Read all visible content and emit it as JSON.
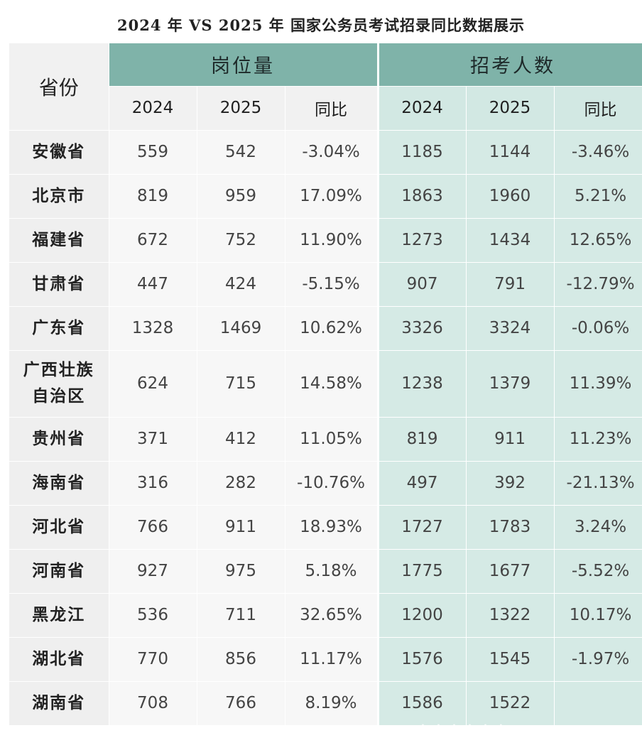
{
  "title": "2024 年 VS 2025 年 国家公务员考试招录同比数据展示",
  "header": {
    "province": "省份",
    "group_positions": "岗位量",
    "group_applicants": "招考人数",
    "col_2024": "2024",
    "col_2025": "2025",
    "col_yoy": "同比"
  },
  "rows": [
    {
      "province": "安徽省",
      "pos_2024": "559",
      "pos_2025": "542",
      "pos_yoy": "-3.04%",
      "app_2024": "1185",
      "app_2025": "1144",
      "app_yoy": "-3.46%"
    },
    {
      "province": "北京市",
      "pos_2024": "819",
      "pos_2025": "959",
      "pos_yoy": "17.09%",
      "app_2024": "1863",
      "app_2025": "1960",
      "app_yoy": "5.21%"
    },
    {
      "province": "福建省",
      "pos_2024": "672",
      "pos_2025": "752",
      "pos_yoy": "11.90%",
      "app_2024": "1273",
      "app_2025": "1434",
      "app_yoy": "12.65%"
    },
    {
      "province": "甘肃省",
      "pos_2024": "447",
      "pos_2025": "424",
      "pos_yoy": "-5.15%",
      "app_2024": "907",
      "app_2025": "791",
      "app_yoy": "-12.79%"
    },
    {
      "province": "广东省",
      "pos_2024": "1328",
      "pos_2025": "1469",
      "pos_yoy": "10.62%",
      "app_2024": "3326",
      "app_2025": "3324",
      "app_yoy": "-0.06%"
    },
    {
      "province_line1": "广西壮族",
      "province_line2": "自治区",
      "pos_2024": "624",
      "pos_2025": "715",
      "pos_yoy": "14.58%",
      "app_2024": "1238",
      "app_2025": "1379",
      "app_yoy": "11.39%"
    },
    {
      "province": "贵州省",
      "pos_2024": "371",
      "pos_2025": "412",
      "pos_yoy": "11.05%",
      "app_2024": "819",
      "app_2025": "911",
      "app_yoy": "11.23%"
    },
    {
      "province": "海南省",
      "pos_2024": "316",
      "pos_2025": "282",
      "pos_yoy": "-10.76%",
      "app_2024": "497",
      "app_2025": "392",
      "app_yoy": "-21.13%"
    },
    {
      "province": "河北省",
      "pos_2024": "766",
      "pos_2025": "911",
      "pos_yoy": "18.93%",
      "app_2024": "1727",
      "app_2025": "1783",
      "app_yoy": "3.24%"
    },
    {
      "province": "河南省",
      "pos_2024": "927",
      "pos_2025": "975",
      "pos_yoy": "5.18%",
      "app_2024": "1775",
      "app_2025": "1677",
      "app_yoy": "-5.52%"
    },
    {
      "province": "黑龙江",
      "pos_2024": "536",
      "pos_2025": "711",
      "pos_yoy": "32.65%",
      "app_2024": "1200",
      "app_2025": "1322",
      "app_yoy": "10.17%"
    },
    {
      "province": "湖北省",
      "pos_2024": "770",
      "pos_2025": "856",
      "pos_yoy": "11.17%",
      "app_2024": "1576",
      "app_2025": "1545",
      "app_yoy": "-1.97%"
    },
    {
      "province": "湖南省",
      "pos_2024": "708",
      "pos_2025": "766",
      "pos_yoy": "8.19%",
      "app_2024": "1586",
      "app_2025": "1522",
      "app_yoy": ""
    }
  ]
}
